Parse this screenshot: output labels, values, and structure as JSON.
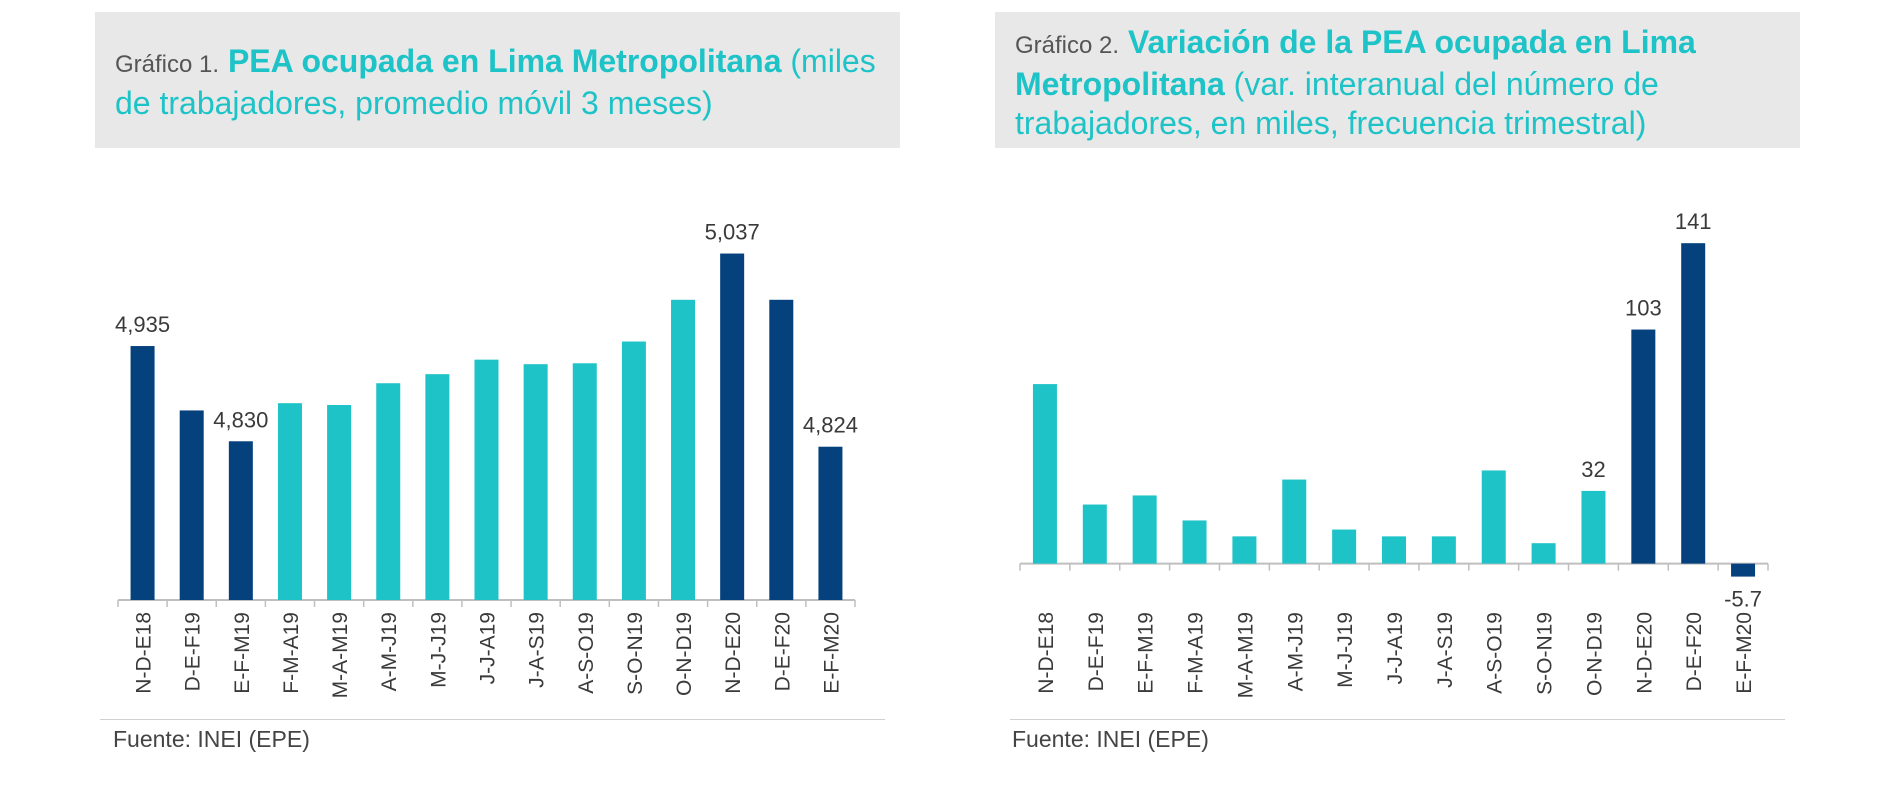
{
  "colors": {
    "dark": "#04417d",
    "light": "#1ec3c7",
    "axis": "#bfbfbf",
    "label": "#3a3a3a"
  },
  "chart1": {
    "title_prefix": "Gráfico 1.",
    "title_main": "PEA ocupada en Lima Metropolitana",
    "title_rest": "(miles de trabajadores, promedio móvil 3 meses)",
    "source": "Fuente: INEI (EPE)"
  },
  "chart2": {
    "title_prefix": "Gráfico 2.",
    "title_main": "Variación de la PEA ocupada en Lima Metropolitana",
    "title_rest": "(var. interanual del número de trabajadores, en miles, frecuencia trimestral)",
    "source": "Fuente: INEI (EPE)"
  },
  "chart_data": [
    {
      "type": "bar",
      "title": "PEA ocupada en Lima Metropolitana",
      "subtitle": "(miles de trabajadores, promedio móvil 3 meses)",
      "categories": [
        "N-D-E18",
        "D-E-F19",
        "E-F-M19",
        "F-M-A19",
        "M-A-M19",
        "A-M-J19",
        "M-J-J19",
        "J-J-A19",
        "J-A-S19",
        "A-S-O19",
        "S-O-N19",
        "O-N-D19",
        "N-D-E20",
        "D-E-F20",
        "E-F-M20"
      ],
      "values": [
        4935,
        4864,
        4830,
        4872,
        4870,
        4894,
        4904,
        4920,
        4915,
        4916,
        4940,
        4986,
        5037,
        4986,
        4824
      ],
      "highlight": [
        true,
        true,
        true,
        false,
        false,
        false,
        false,
        false,
        false,
        false,
        false,
        false,
        true,
        true,
        true
      ],
      "data_labels": [
        "4,935",
        "",
        "4,830",
        "",
        "",
        "",
        "",
        "",
        "",
        "",
        "",
        "",
        "5,037",
        "",
        "4,824"
      ],
      "ylim": [
        4655,
        5085
      ],
      "grid": false
    },
    {
      "type": "bar",
      "title": "Variación de la PEA ocupada en Lima Metropolitana",
      "subtitle": "(var. interanual del número de trabajadores, en miles, frecuencia trimestral)",
      "categories": [
        "N-D-E18",
        "D-E-F19",
        "E-F-M19",
        "F-M-A19",
        "M-A-M19",
        "A-M-J19",
        "M-J-J19",
        "J-J-A19",
        "J-A-S19",
        "A-S-O19",
        "S-O-N19",
        "O-N-D19",
        "N-D-E20",
        "D-E-F20",
        "E-F-M20"
      ],
      "values": [
        79,
        26,
        30,
        19,
        12,
        37,
        15,
        12,
        12,
        41,
        9,
        32,
        103,
        141,
        -5.7
      ],
      "highlight": [
        false,
        false,
        false,
        false,
        false,
        false,
        false,
        false,
        false,
        false,
        false,
        false,
        true,
        true,
        true
      ],
      "data_labels": [
        "",
        "",
        "",
        "",
        "",
        "",
        "",
        "",
        "",
        "",
        "",
        "32",
        "103",
        "141",
        "-5.7"
      ],
      "ylim": [
        -60,
        160
      ],
      "grid": false
    }
  ]
}
